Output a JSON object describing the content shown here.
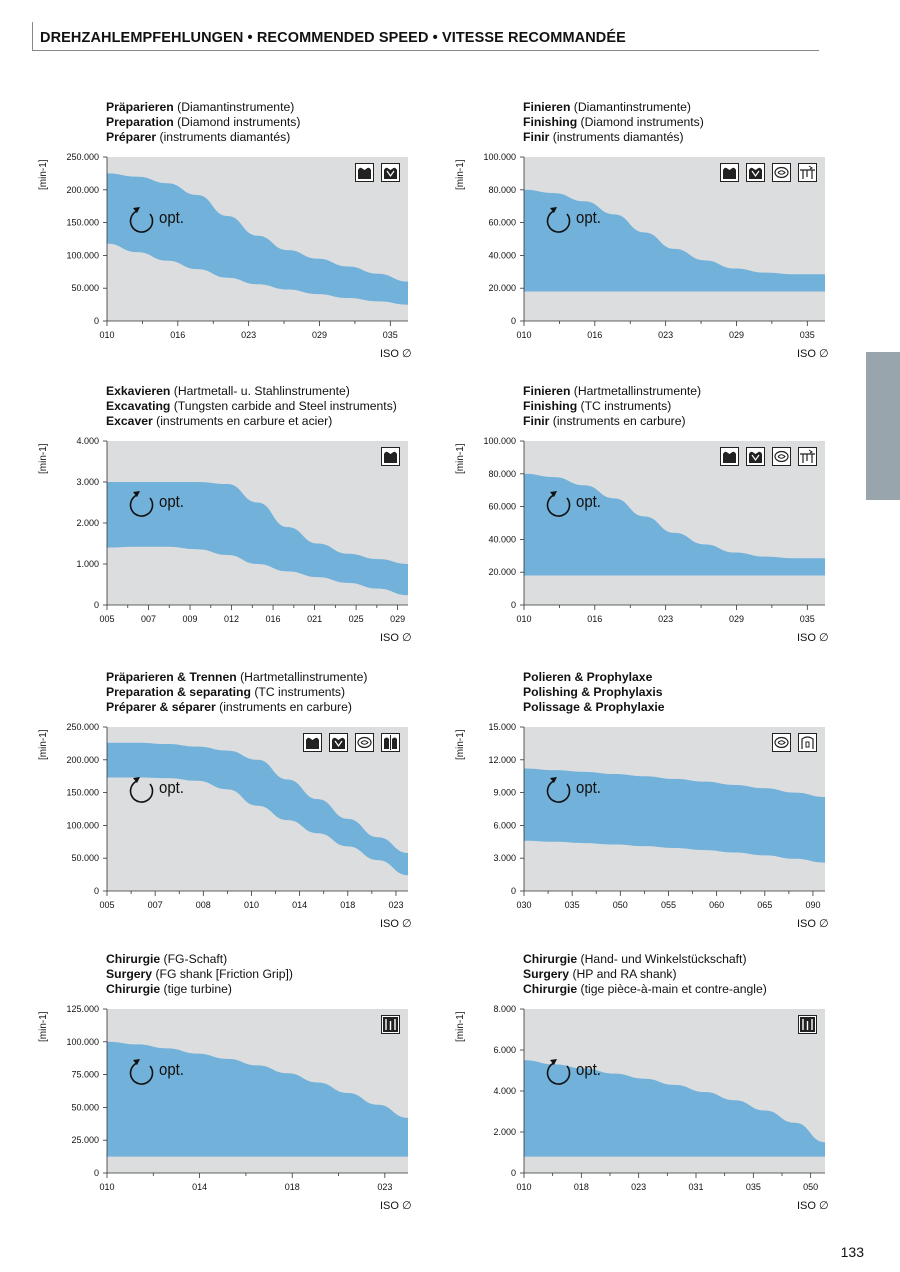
{
  "header": {
    "title": "DREHZAHLEMPFEHLUNGEN • RECOMMENDED SPEED • VITESSE RECOMMANDÉE"
  },
  "page_number": "133",
  "colors": {
    "band": "#72b1d9",
    "plot_bg": "#dcdddf",
    "sidetab": "#98a5ad"
  },
  "chart_data": [
    {
      "type": "area",
      "title_lines": [
        {
          "bold": "Präparieren",
          "rest": " (Diamantinstrumente)"
        },
        {
          "bold": "Preparation",
          "rest": " (Diamond instruments)"
        },
        {
          "bold": "Préparer",
          "rest": " (instruments diamantés)"
        }
      ],
      "ylabel": "[min-1]",
      "xlabel": "ISO ∅",
      "band_label": "opt.",
      "ylim": [
        0,
        250000
      ],
      "yticks": [
        "0",
        "50.000",
        "100.000",
        "150.000",
        "200.000",
        "250.000"
      ],
      "ytick_values": [
        0,
        50000,
        100000,
        150000,
        200000,
        250000
      ],
      "categories": [
        "010",
        "016",
        "023",
        "029",
        "035"
      ],
      "x": [
        0,
        0.1,
        0.2,
        0.3,
        0.4,
        0.5,
        0.6,
        0.7,
        0.8,
        0.9,
        1.0
      ],
      "series": [
        {
          "values": [
            225000,
            220000,
            210000,
            192000,
            160000,
            130000,
            108000,
            95000,
            83000,
            72000,
            60000
          ]
        },
        {
          "values": [
            118000,
            105000,
            92000,
            79000,
            66000,
            56000,
            48000,
            41000,
            35000,
            30000,
            25000
          ]
        }
      ],
      "icons": [
        "crown-prep-icon",
        "crown-fissure-icon"
      ]
    },
    {
      "type": "area",
      "title_lines": [
        {
          "bold": "Finieren",
          "rest": " (Diamantinstrumente)"
        },
        {
          "bold": "Finishing",
          "rest": " (Diamond instruments)"
        },
        {
          "bold": "Finir",
          "rest": " (instruments diamantés)"
        }
      ],
      "ylabel": "[min-1]",
      "xlabel": "ISO ∅",
      "band_label": "opt.",
      "ylim": [
        0,
        100000
      ],
      "yticks": [
        "0",
        "20.000",
        "40.000",
        "60.000",
        "80.000",
        "100.000"
      ],
      "ytick_values": [
        0,
        20000,
        40000,
        60000,
        80000,
        100000
      ],
      "categories": [
        "010",
        "016",
        "023",
        "029",
        "035"
      ],
      "x": [
        0,
        0.1,
        0.2,
        0.3,
        0.4,
        0.5,
        0.6,
        0.7,
        0.8,
        0.9,
        1.0
      ],
      "series": [
        {
          "values": [
            80000,
            78000,
            73000,
            65000,
            54000,
            44000,
            37000,
            32000,
            29500,
            28500,
            28500
          ]
        },
        {
          "values": [
            18000,
            18000,
            18000,
            18000,
            18000,
            18000,
            18000,
            18000,
            18000,
            18000,
            18000
          ]
        }
      ],
      "icons": [
        "crown-prep-icon",
        "crown-fissure-icon",
        "polish-icon",
        "root-icon"
      ]
    },
    {
      "type": "area",
      "title_lines": [
        {
          "bold": "Exkavieren",
          "rest": " (Hartmetall- u. Stahlinstrumente)"
        },
        {
          "bold": "Excavating",
          "rest": " (Tungsten carbide and Steel instruments)"
        },
        {
          "bold": "Excaver",
          "rest": " (instruments en carbure et acier)"
        }
      ],
      "ylabel": "[min-1]",
      "xlabel": "ISO ∅",
      "band_label": "opt.",
      "ylim": [
        0,
        4000
      ],
      "yticks": [
        "0",
        "1.000",
        "2.000",
        "3.000",
        "4.000"
      ],
      "ytick_values": [
        0,
        1000,
        2000,
        3000,
        4000
      ],
      "categories": [
        "005",
        "007",
        "009",
        "012",
        "016",
        "021",
        "025",
        "029"
      ],
      "x": [
        0,
        0.1,
        0.2,
        0.3,
        0.4,
        0.5,
        0.6,
        0.7,
        0.8,
        0.9,
        1.0
      ],
      "series": [
        {
          "values": [
            3000,
            3000,
            3000,
            3000,
            2950,
            2500,
            1900,
            1500,
            1250,
            1120,
            1000
          ]
        },
        {
          "values": [
            1400,
            1420,
            1420,
            1360,
            1220,
            1000,
            820,
            680,
            540,
            400,
            240
          ]
        }
      ],
      "icons": [
        "crown-prep-icon"
      ]
    },
    {
      "type": "area",
      "title_lines": [
        {
          "bold": "Finieren",
          "rest": " (Hartmetallinstrumente)"
        },
        {
          "bold": "Finishing",
          "rest": " (TC instruments)"
        },
        {
          "bold": "Finir",
          "rest": " (instruments en carbure)"
        }
      ],
      "ylabel": "[min-1]",
      "xlabel": "ISO ∅",
      "band_label": "opt.",
      "ylim": [
        0,
        100000
      ],
      "yticks": [
        "0",
        "20.000",
        "40.000",
        "60.000",
        "80.000",
        "100.000"
      ],
      "ytick_values": [
        0,
        20000,
        40000,
        60000,
        80000,
        100000
      ],
      "categories": [
        "010",
        "016",
        "023",
        "029",
        "035"
      ],
      "x": [
        0,
        0.1,
        0.2,
        0.3,
        0.4,
        0.5,
        0.6,
        0.7,
        0.8,
        0.9,
        1.0
      ],
      "series": [
        {
          "values": [
            80000,
            78000,
            73000,
            65000,
            54000,
            44000,
            37000,
            32000,
            29500,
            28500,
            28500
          ]
        },
        {
          "values": [
            18000,
            18000,
            18000,
            18000,
            18000,
            18000,
            18000,
            18000,
            18000,
            18000,
            18000
          ]
        }
      ],
      "icons": [
        "crown-prep-icon",
        "crown-fissure-icon",
        "polish-icon",
        "root-icon"
      ]
    },
    {
      "type": "area",
      "title_lines": [
        {
          "bold": "Präparieren & Trennen",
          "rest": " (Hartmetallinstrumente)"
        },
        {
          "bold": "Preparation & separating",
          "rest": " (TC instruments)"
        },
        {
          "bold": "Préparer & séparer",
          "rest": " (instruments en carbure)"
        }
      ],
      "ylabel": "[min-1]",
      "xlabel": "ISO ∅",
      "band_label": "opt.",
      "ylim": [
        0,
        250000
      ],
      "yticks": [
        "0",
        "50.000",
        "100.000",
        "150.000",
        "200.000",
        "250.000"
      ],
      "ytick_values": [
        0,
        50000,
        100000,
        150000,
        200000,
        250000
      ],
      "categories": [
        "005",
        "007",
        "008",
        "010",
        "014",
        "018",
        "023"
      ],
      "x": [
        0,
        0.1,
        0.2,
        0.3,
        0.4,
        0.5,
        0.6,
        0.7,
        0.8,
        0.9,
        1.0
      ],
      "series": [
        {
          "values": [
            226000,
            226000,
            224000,
            220000,
            214000,
            200000,
            170000,
            140000,
            110000,
            82000,
            58000
          ]
        },
        {
          "values": [
            173000,
            173000,
            172000,
            168000,
            155000,
            130000,
            108000,
            88000,
            68000,
            47000,
            24000
          ]
        }
      ],
      "icons": [
        "crown-prep-icon",
        "crown-fissure-icon",
        "polish-icon",
        "separating-icon"
      ]
    },
    {
      "type": "area",
      "title_lines": [
        {
          "bold": "Polieren & Prophylaxe",
          "rest": ""
        },
        {
          "bold": "Polishing & Prophylaxis",
          "rest": ""
        },
        {
          "bold": "Polissage & Prophylaxie",
          "rest": ""
        }
      ],
      "ylabel": "[min-1]",
      "xlabel": "ISO ∅",
      "band_label": "opt.",
      "ylim": [
        0,
        15000
      ],
      "yticks": [
        "0",
        "3.000",
        "6.000",
        "9.000",
        "12.000",
        "15.000"
      ],
      "ytick_values": [
        0,
        3000,
        6000,
        9000,
        12000,
        15000
      ],
      "categories": [
        "030",
        "035",
        "050",
        "055",
        "060",
        "065",
        "090"
      ],
      "x": [
        0,
        0.1,
        0.2,
        0.3,
        0.4,
        0.5,
        0.6,
        0.7,
        0.8,
        0.9,
        1.0
      ],
      "series": [
        {
          "values": [
            11200,
            11050,
            10900,
            10700,
            10500,
            10250,
            10000,
            9700,
            9400,
            9000,
            8600
          ]
        },
        {
          "values": [
            4600,
            4500,
            4380,
            4250,
            4100,
            3930,
            3740,
            3520,
            3260,
            2950,
            2600
          ]
        }
      ],
      "icons": [
        "polish-icon",
        "prophylaxis-icon"
      ]
    },
    {
      "type": "area",
      "title_lines": [
        {
          "bold": "Chirurgie",
          "rest": " (FG-Schaft)"
        },
        {
          "bold": "Surgery",
          "rest": " (FG shank [Friction Grip])"
        },
        {
          "bold": "Chirurgie",
          "rest": " (tige turbine)"
        }
      ],
      "ylabel": "[min-1]",
      "xlabel": "ISO ∅",
      "band_label": "opt.",
      "ylim": [
        0,
        125000
      ],
      "yticks": [
        "0",
        "25.000",
        "50.000",
        "75.000",
        "100.000",
        "125.000"
      ],
      "ytick_values": [
        0,
        25000,
        50000,
        75000,
        100000,
        125000
      ],
      "categories": [
        "010",
        "014",
        "018",
        "023"
      ],
      "x": [
        0,
        0.1,
        0.2,
        0.3,
        0.4,
        0.5,
        0.6,
        0.7,
        0.8,
        0.9,
        1.0
      ],
      "series": [
        {
          "values": [
            100000,
            98000,
            95000,
            91000,
            87000,
            82000,
            76000,
            69000,
            61000,
            52000,
            42000
          ]
        },
        {
          "values": [
            12500,
            12500,
            12500,
            12500,
            12500,
            12500,
            12500,
            12500,
            12500,
            12500,
            12500
          ]
        }
      ],
      "icons": [
        "surgery-icon"
      ]
    },
    {
      "type": "area",
      "title_lines": [
        {
          "bold": "Chirurgie",
          "rest": " (Hand- und Winkelstückschaft)"
        },
        {
          "bold": "Surgery",
          "rest": " (HP and RA shank)"
        },
        {
          "bold": "Chirurgie",
          "rest": " (tige pièce-à-main et contre-angle)"
        }
      ],
      "ylabel": "[min-1]",
      "xlabel": "ISO ∅",
      "band_label": "opt.",
      "ylim": [
        0,
        8000
      ],
      "yticks": [
        "0",
        "2.000",
        "4.000",
        "6.000",
        "8.000"
      ],
      "ytick_values": [
        0,
        2000,
        4000,
        6000,
        8000
      ],
      "categories": [
        "010",
        "018",
        "023",
        "031",
        "035",
        "050"
      ],
      "x": [
        0,
        0.1,
        0.2,
        0.3,
        0.4,
        0.5,
        0.6,
        0.7,
        0.8,
        0.9,
        1.0
      ],
      "series": [
        {
          "values": [
            5500,
            5300,
            5100,
            4850,
            4600,
            4300,
            3950,
            3550,
            3050,
            2450,
            1500
          ]
        },
        {
          "values": [
            800,
            800,
            800,
            800,
            800,
            800,
            800,
            800,
            800,
            800,
            800
          ]
        }
      ],
      "icons": [
        "surgery-icon"
      ]
    }
  ]
}
